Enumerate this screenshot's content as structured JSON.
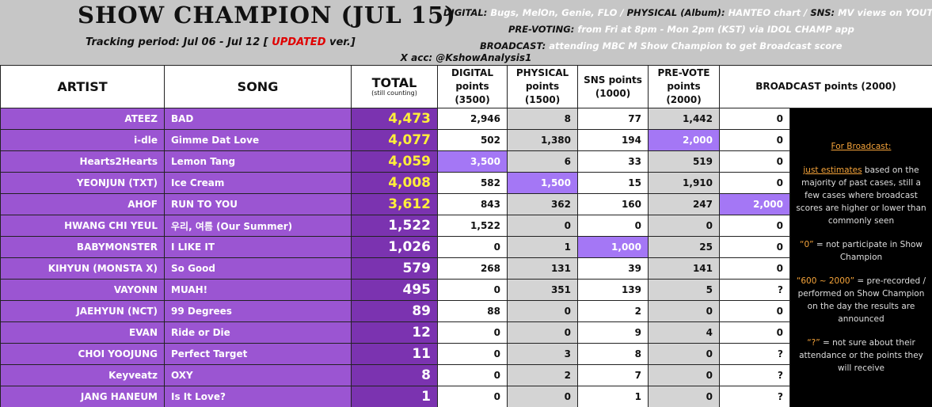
{
  "header": {
    "title": "SHOW CHAMPION (JUL 15)",
    "tracking": {
      "before": "Tracking period: Jul 06 - Jul 12 [ ",
      "updated": "UPDATED",
      "after": " ver.]"
    },
    "sources": [
      [
        {
          "label": "DIGITAL:"
        },
        {
          "text": "Bugs, MelOn, Genie, FLO / "
        },
        {
          "label": "PHYSICAL (Album):"
        },
        {
          "text": "HANTEO chart / "
        },
        {
          "label": "SNS:"
        },
        {
          "text": "MV views on YOUTUBE"
        }
      ],
      [
        {
          "label": "PRE-VOTING:"
        },
        {
          "text": "from Fri at 8pm - Mon 2pm (KST) via IDOL CHAMP app"
        }
      ],
      [
        {
          "label": "BROADCAST:"
        },
        {
          "text": "attending MBC M Show Champion to get Broadcast score"
        }
      ]
    ],
    "account": "X acc: @KshowAnalysis1"
  },
  "table": {
    "columns": {
      "artist": "ARTIST",
      "song": "SONG",
      "total": "TOTAL",
      "total_note": "(still counting)",
      "digital": "DIGITAL points (3500)",
      "physical": "PHYSICAL points (1500)",
      "sns": "SNS points (1000)",
      "prevote": "PRE-VOTE points (2000)",
      "broadcast": "BROADCAST points (2000)"
    },
    "rows": [
      [
        "ATEEZ",
        "BAD",
        "4,473",
        "2,946",
        "8",
        "77",
        "1,442",
        "0"
      ],
      [
        "i-dle",
        "Gimme Dat Love",
        "4,077",
        "502",
        "1,380",
        "194",
        "2,000",
        "0"
      ],
      [
        "Hearts2Hearts",
        "Lemon Tang",
        "4,059",
        "3,500",
        "6",
        "33",
        "519",
        "0"
      ],
      [
        "YEONJUN (TXT)",
        "Ice Cream",
        "4,008",
        "582",
        "1,500",
        "15",
        "1,910",
        "0"
      ],
      [
        "AHOF",
        "RUN TO YOU",
        "3,612",
        "843",
        "362",
        "160",
        "247",
        "2,000"
      ],
      [
        "HWANG CHI YEUL",
        "우리, 여름 (Our Summer)",
        "1,522",
        "1,522",
        "0",
        "0",
        "0",
        "0"
      ],
      [
        "BABYMONSTER",
        "I LIKE IT",
        "1,026",
        "0",
        "1",
        "1,000",
        "25",
        "0"
      ],
      [
        "KIHYUN (MONSTA X)",
        "So Good",
        "579",
        "268",
        "131",
        "39",
        "141",
        "0"
      ],
      [
        "VAYONN",
        "MUAH!",
        "495",
        "0",
        "351",
        "139",
        "5",
        "?"
      ],
      [
        "JAEHYUN (NCT)",
        "99 Degrees",
        "89",
        "88",
        "0",
        "2",
        "0",
        "0"
      ],
      [
        "EVAN",
        "Ride or Die",
        "12",
        "0",
        "0",
        "9",
        "4",
        "0"
      ],
      [
        "CHOI YOOJUNG",
        "Perfect Target",
        "11",
        "0",
        "3",
        "8",
        "0",
        "?"
      ],
      [
        "Keyveatz",
        "OXY",
        "8",
        "0",
        "2",
        "7",
        "0",
        "?"
      ],
      [
        "JANG HANEUM",
        "Is It Love?",
        "1",
        "0",
        "0",
        "1",
        "0",
        "?"
      ]
    ]
  },
  "notes": [
    {
      "heading": "For Broadcast:"
    },
    {
      "em": "just estimates",
      "text": " based on the majority of past cases, still a few cases where broadcast scores are higher or lower than commonly seen"
    },
    {
      "em": "“0”",
      "text": " = not participate in Show Champion"
    },
    {
      "em": "“600 ~ 2000”",
      "text": " = pre-recorded / performed on Show Champion on the day the results are announced"
    },
    {
      "em": "“?”",
      "text": " = not sure about their attendance or the points they will receive"
    }
  ]
}
